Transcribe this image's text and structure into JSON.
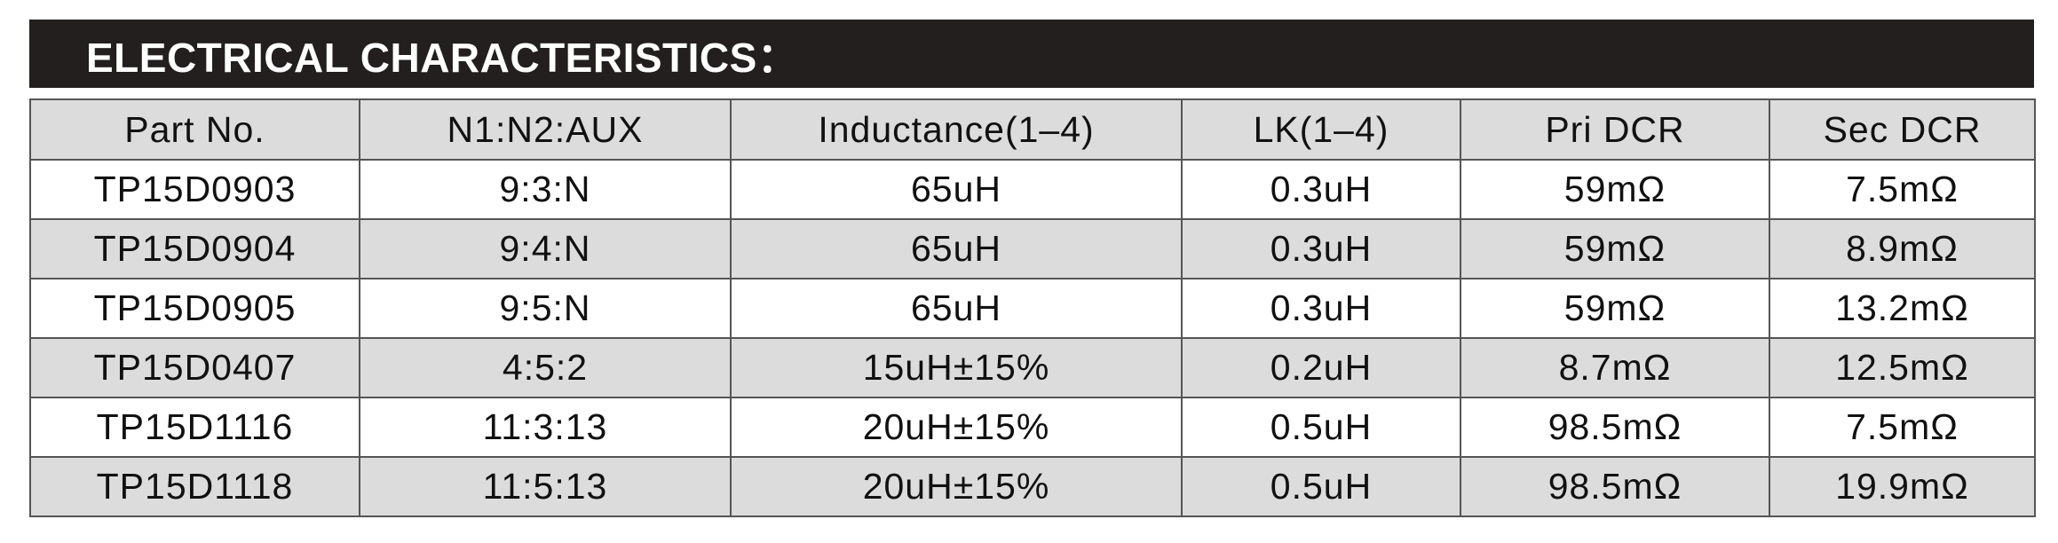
{
  "header": {
    "title": "ELECTRICAL CHARACTERISTICS："
  },
  "table": {
    "columns": [
      "Part No.",
      "N1:N2:AUX",
      "Inductance(1–4)",
      "LK(1–4)",
      "Pri DCR",
      "Sec DCR"
    ],
    "rows": [
      [
        "TP15D0903",
        "9:3:N",
        "65uH",
        "0.3uH",
        "59mΩ",
        "7.5mΩ"
      ],
      [
        "TP15D0904",
        "9:4:N",
        "65uH",
        "0.3uH",
        "59mΩ",
        "8.9mΩ"
      ],
      [
        "TP15D0905",
        "9:5:N",
        "65uH",
        "0.3uH",
        "59mΩ",
        "13.2mΩ"
      ],
      [
        "TP15D0407",
        "4:5:2",
        "15uH±15%",
        "0.2uH",
        "8.7mΩ",
        "12.5mΩ"
      ],
      [
        "TP15D1116",
        "11:3:13",
        "20uH±15%",
        "0.5uH",
        "98.5mΩ",
        "7.5mΩ"
      ],
      [
        "TP15D1118",
        "11:5:13",
        "20uH±15%",
        "0.5uH",
        "98.5mΩ",
        "19.9mΩ"
      ]
    ]
  }
}
